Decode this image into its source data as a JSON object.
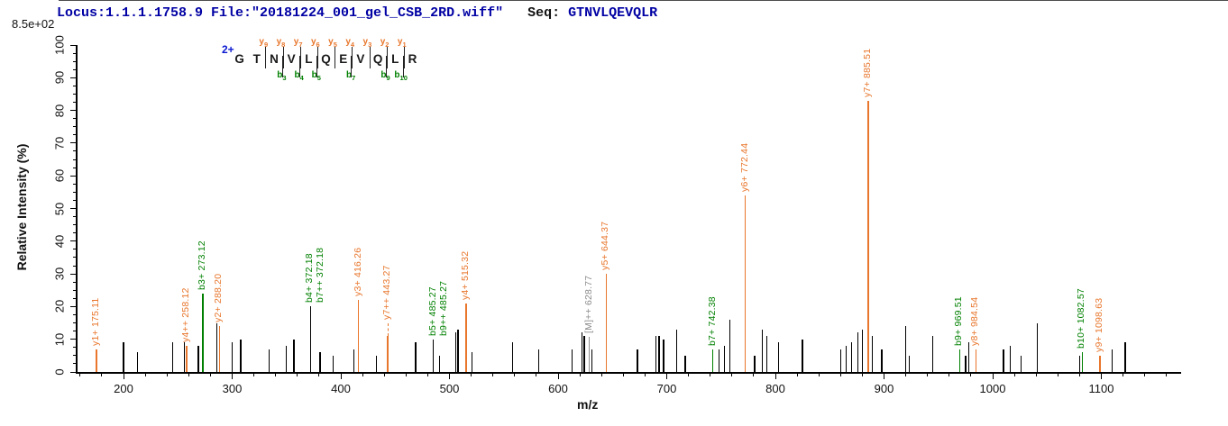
{
  "header": {
    "locus_file": "Locus:1.1.1.1758.9 File:\"20181224_001_gel_CSB_2RD.wiff\"",
    "seq_label": "Seq:",
    "seq_value": "GTNVLQEVQLR",
    "intensity_scale": "8.5e+02"
  },
  "colors": {
    "y_ion": "#e8762c",
    "b_ion": "#008000",
    "precursor": "#8c8c8c",
    "noise": "#000000",
    "header_blue": "#0000a4",
    "charge_blue": "#0a18cf"
  },
  "annotation": {
    "charge": "2+",
    "residues": [
      "G",
      "T",
      "N",
      "V",
      "L",
      "Q",
      "E",
      "V",
      "Q",
      "L",
      "R"
    ],
    "y_ions": [
      {
        "name": "y9",
        "residue_index": 2
      },
      {
        "name": "y8",
        "residue_index": 3
      },
      {
        "name": "y7",
        "residue_index": 4
      },
      {
        "name": "y6",
        "residue_index": 5
      },
      {
        "name": "y5",
        "residue_index": 6
      },
      {
        "name": "y4",
        "residue_index": 7
      },
      {
        "name": "y3",
        "residue_index": 8
      },
      {
        "name": "y2",
        "residue_index": 9
      },
      {
        "name": "y1",
        "residue_index": 10
      }
    ],
    "b_ions": [
      {
        "name": "b3",
        "residue_index": 2
      },
      {
        "name": "b4",
        "residue_index": 3
      },
      {
        "name": "b5",
        "residue_index": 4
      },
      {
        "name": "b7",
        "residue_index": 6
      },
      {
        "name": "b9",
        "residue_index": 8
      },
      {
        "name": "b10",
        "residue_index": 9
      }
    ]
  },
  "chart_data": {
    "type": "bar",
    "subtype": "ms2-stick-spectrum",
    "title": "",
    "xlabel": "m/z",
    "ylabel": "Relative  Intensity (%)",
    "xlim": [
      157,
      1173
    ],
    "ylim": [
      0,
      100
    ],
    "x_major_ticks": [
      200,
      300,
      400,
      500,
      600,
      700,
      800,
      900,
      1000,
      1100
    ],
    "x_minor_step": 20,
    "y_major_ticks": [
      0,
      10,
      20,
      30,
      40,
      50,
      60,
      70,
      80,
      90,
      100
    ],
    "y_minor_step": 2.5,
    "grid": false,
    "legend": false,
    "labeled_peaks": [
      {
        "mz": 175.11,
        "intensity": 7,
        "ion": "y1+",
        "label": "y1+ 175.11",
        "color": "y"
      },
      {
        "mz": 258.12,
        "intensity": 8,
        "ion": "y4++",
        "label": "y4++ 258.12",
        "color": "y"
      },
      {
        "mz": 273.12,
        "intensity": 24,
        "ion": "b3+",
        "label": "b3+ 273.12",
        "color": "b",
        "line": "b"
      },
      {
        "mz": 288.2,
        "intensity": 14,
        "ion": "y2+",
        "label": "y2+ 288.20",
        "color": "y"
      },
      {
        "mz": 372.18,
        "intensity": 20,
        "ion": "b4+ / b7++",
        "label": "b4+ 372.18",
        "label2": "b7++ 372.18",
        "color": "b",
        "line": "k"
      },
      {
        "mz": 416.26,
        "intensity": 22,
        "ion": "y3+",
        "label": "y3+ 416.26",
        "color": "y"
      },
      {
        "mz": 443.27,
        "intensity": 11,
        "ion": "y7++",
        "label": "y7++ 443.27",
        "color": "y",
        "leader": 14
      },
      {
        "mz": 485.27,
        "intensity": 10,
        "ion": "b5+ / b9++",
        "label": "b5+ 485.27",
        "label2": "b9++ 485.27",
        "color": "b",
        "line": "k"
      },
      {
        "mz": 515.32,
        "intensity": 21,
        "ion": "y4+",
        "label": "y4+ 515.32",
        "color": "y"
      },
      {
        "mz": 628.77,
        "intensity": 7,
        "ion": "[M]++",
        "label": "[M]++ 628.77",
        "color": "m",
        "leader": 14
      },
      {
        "mz": 644.37,
        "intensity": 30,
        "ion": "y5+",
        "label": "y5+ 644.37",
        "color": "y"
      },
      {
        "mz": 742.38,
        "intensity": 7,
        "ion": "b7+",
        "label": "b7+ 742.38",
        "color": "b",
        "line": "b"
      },
      {
        "mz": 772.44,
        "intensity": 54,
        "ion": "y6+",
        "label": "y6+ 772.44",
        "color": "y"
      },
      {
        "mz": 885.51,
        "intensity": 83,
        "ion": "y7+",
        "label": "y7+ 885.51",
        "color": "y"
      },
      {
        "mz": 969.51,
        "intensity": 7,
        "ion": "b9+",
        "label": "b9+ 969.51",
        "color": "b",
        "line": "b"
      },
      {
        "mz": 984.54,
        "intensity": 7,
        "ion": "y8+",
        "label": "y8+ 984.54",
        "color": "y"
      },
      {
        "mz": 1082.57,
        "intensity": 6,
        "ion": "b10+",
        "label": "b10+ 1082.57",
        "color": "b",
        "line": "b"
      },
      {
        "mz": 1098.63,
        "intensity": 5,
        "ion": "y9+",
        "label": "y9+ 1098.63",
        "color": "y"
      }
    ],
    "noise_peaks": [
      {
        "mz": 200,
        "intensity": 9
      },
      {
        "mz": 213,
        "intensity": 6
      },
      {
        "mz": 245,
        "intensity": 9
      },
      {
        "mz": 256,
        "intensity": 9
      },
      {
        "mz": 269,
        "intensity": 8
      },
      {
        "mz": 286,
        "intensity": 15
      },
      {
        "mz": 300,
        "intensity": 9
      },
      {
        "mz": 308,
        "intensity": 10
      },
      {
        "mz": 334,
        "intensity": 7
      },
      {
        "mz": 350,
        "intensity": 8
      },
      {
        "mz": 357,
        "intensity": 10
      },
      {
        "mz": 381,
        "intensity": 6
      },
      {
        "mz": 393,
        "intensity": 5
      },
      {
        "mz": 412,
        "intensity": 7
      },
      {
        "mz": 433,
        "intensity": 5
      },
      {
        "mz": 469,
        "intensity": 9
      },
      {
        "mz": 491,
        "intensity": 5
      },
      {
        "mz": 506,
        "intensity": 12
      },
      {
        "mz": 508,
        "intensity": 13
      },
      {
        "mz": 521,
        "intensity": 6
      },
      {
        "mz": 558,
        "intensity": 9
      },
      {
        "mz": 582,
        "intensity": 7
      },
      {
        "mz": 613,
        "intensity": 7
      },
      {
        "mz": 622,
        "intensity": 12
      },
      {
        "mz": 624,
        "intensity": 11
      },
      {
        "mz": 631,
        "intensity": 7
      },
      {
        "mz": 673,
        "intensity": 7
      },
      {
        "mz": 690,
        "intensity": 11
      },
      {
        "mz": 693,
        "intensity": 11
      },
      {
        "mz": 697,
        "intensity": 10
      },
      {
        "mz": 709,
        "intensity": 13
      },
      {
        "mz": 717,
        "intensity": 5
      },
      {
        "mz": 748,
        "intensity": 7
      },
      {
        "mz": 753,
        "intensity": 8
      },
      {
        "mz": 758,
        "intensity": 16
      },
      {
        "mz": 781,
        "intensity": 5
      },
      {
        "mz": 788,
        "intensity": 13
      },
      {
        "mz": 792,
        "intensity": 11
      },
      {
        "mz": 803,
        "intensity": 9
      },
      {
        "mz": 825,
        "intensity": 10
      },
      {
        "mz": 860,
        "intensity": 7
      },
      {
        "mz": 865,
        "intensity": 8
      },
      {
        "mz": 870,
        "intensity": 9
      },
      {
        "mz": 876,
        "intensity": 12
      },
      {
        "mz": 880,
        "intensity": 13
      },
      {
        "mz": 889,
        "intensity": 11
      },
      {
        "mz": 898,
        "intensity": 7
      },
      {
        "mz": 920,
        "intensity": 14
      },
      {
        "mz": 923,
        "intensity": 5
      },
      {
        "mz": 945,
        "intensity": 11
      },
      {
        "mz": 975,
        "intensity": 5
      },
      {
        "mz": 978,
        "intensity": 9
      },
      {
        "mz": 1010,
        "intensity": 7
      },
      {
        "mz": 1016,
        "intensity": 8
      },
      {
        "mz": 1026,
        "intensity": 5
      },
      {
        "mz": 1041,
        "intensity": 15
      },
      {
        "mz": 1080,
        "intensity": 5
      },
      {
        "mz": 1110,
        "intensity": 7
      },
      {
        "mz": 1122,
        "intensity": 9
      }
    ]
  }
}
